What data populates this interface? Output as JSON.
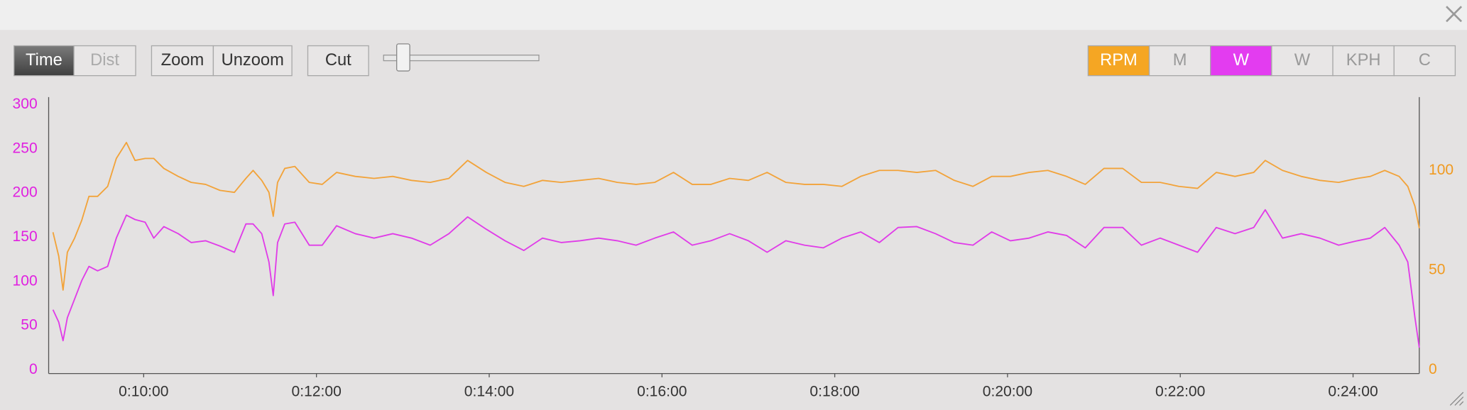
{
  "toolbar": {
    "mode_buttons": [
      "Time",
      "Dist"
    ],
    "zoom_buttons": [
      "Zoom",
      "Unzoom"
    ],
    "cut_button": "Cut",
    "series_buttons": [
      {
        "label": "RPM",
        "active": true,
        "color": "#f5a623"
      },
      {
        "label": "M",
        "active": false,
        "color": null
      },
      {
        "label": "W",
        "active": true,
        "color": "#e33cf0"
      },
      {
        "label": "W",
        "active": false,
        "color": null
      },
      {
        "label": "KPH",
        "active": false,
        "color": null
      },
      {
        "label": "C",
        "active": false,
        "color": null
      }
    ]
  },
  "chart_data": {
    "type": "line",
    "x": [
      537,
      541,
      544,
      547,
      552,
      557,
      562,
      568,
      575,
      581,
      588,
      594,
      601,
      607,
      614,
      624,
      633,
      643,
      653,
      663,
      671,
      676,
      682,
      687,
      690,
      693,
      698,
      705,
      715,
      724,
      734,
      747,
      760,
      773,
      786,
      799,
      812,
      825,
      838,
      851,
      864,
      877,
      890,
      903,
      916,
      929,
      942,
      955,
      968,
      981,
      994,
      1007,
      1020,
      1033,
      1046,
      1059,
      1072,
      1085,
      1098,
      1111,
      1124,
      1137,
      1150,
      1163,
      1176,
      1189,
      1202,
      1215,
      1228,
      1241,
      1254,
      1267,
      1280,
      1293,
      1306,
      1319,
      1332,
      1345,
      1358,
      1371,
      1379,
      1391,
      1404,
      1417,
      1430,
      1443,
      1452,
      1462,
      1472,
      1478,
      1483,
      1486
    ],
    "xlim": [
      534,
      1486
    ],
    "xticks": [
      {
        "value": 600,
        "label": "0:10:00"
      },
      {
        "value": 720,
        "label": "0:12:00"
      },
      {
        "value": 840,
        "label": "0:14:00"
      },
      {
        "value": 960,
        "label": "0:16:00"
      },
      {
        "value": 1080,
        "label": "0:18:00"
      },
      {
        "value": 1200,
        "label": "0:20:00"
      },
      {
        "value": 1320,
        "label": "0:22:00"
      },
      {
        "value": 1440,
        "label": "0:24:00"
      }
    ],
    "ylim": [
      0,
      300
    ],
    "yticks": [
      0,
      50,
      100,
      150,
      200,
      250,
      300
    ],
    "ytick_color": "#e020e0",
    "y2lim": [
      0,
      133
    ],
    "y2ticks": [
      0,
      50,
      100
    ],
    "y2tick_color": "#f09a20",
    "series": [
      {
        "name": "W",
        "color": "#e03ce8",
        "axis": "y",
        "values": [
          68,
          54,
          33,
          59,
          80,
          101,
          117,
          112,
          117,
          149,
          175,
          170,
          167,
          149,
          162,
          154,
          144,
          146,
          140,
          133,
          165,
          165,
          154,
          122,
          84,
          144,
          165,
          167,
          141,
          141,
          163,
          154,
          149,
          154,
          149,
          141,
          154,
          173,
          159,
          146,
          135,
          149,
          144,
          146,
          149,
          146,
          141,
          149,
          156,
          141,
          146,
          154,
          146,
          133,
          146,
          141,
          138,
          149,
          156,
          144,
          161,
          162,
          154,
          144,
          141,
          156,
          146,
          149,
          156,
          152,
          138,
          161,
          161,
          141,
          149,
          141,
          133,
          161,
          154,
          161,
          181,
          149,
          154,
          149,
          141,
          146,
          149,
          161,
          141,
          122,
          59,
          25
        ]
      },
      {
        "name": "RPM",
        "color": "#f2a33a",
        "axis": "y2",
        "values": [
          69,
          57,
          40,
          59,
          66,
          75,
          87,
          87,
          92,
          106,
          114,
          105,
          106,
          106,
          101,
          97,
          94,
          93,
          90,
          89,
          96,
          100,
          95,
          89,
          77,
          94,
          101,
          102,
          94,
          93,
          99,
          97,
          96,
          97,
          95,
          94,
          96,
          105,
          99,
          94,
          92,
          95,
          94,
          95,
          96,
          94,
          93,
          94,
          99,
          93,
          93,
          96,
          95,
          99,
          94,
          93,
          93,
          92,
          97,
          100,
          100,
          99,
          100,
          95,
          92,
          97,
          97,
          99,
          100,
          97,
          93,
          101,
          101,
          94,
          94,
          92,
          91,
          99,
          97,
          99,
          105,
          100,
          97,
          95,
          94,
          96,
          97,
          100,
          97,
          92,
          82,
          71
        ]
      }
    ]
  }
}
